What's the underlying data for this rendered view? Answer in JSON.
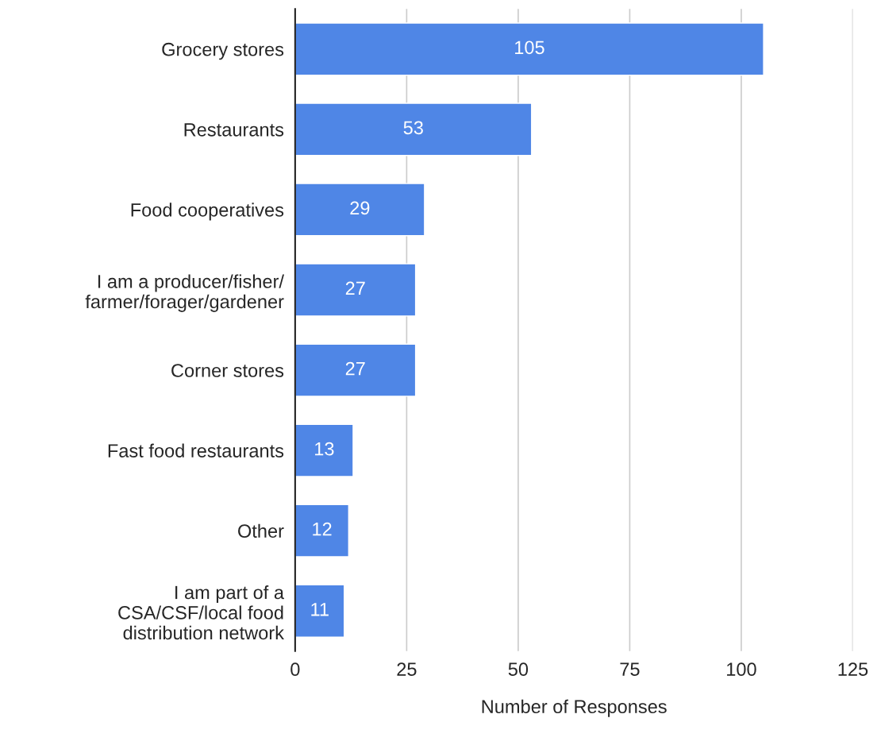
{
  "chart_data": {
    "type": "bar",
    "orientation": "horizontal",
    "xlabel": "Number of Responses",
    "categories": [
      "Grocery stores",
      "Restaurants",
      "Food cooperatives",
      "I am a producer/fisher/\nfarmer/forager/gardener",
      "Corner stores",
      "Fast food restaurants",
      "Other",
      "I am part of a\nCSA/CSF/local food\ndistribution network"
    ],
    "values": [
      105,
      53,
      29,
      27,
      27,
      13,
      12,
      11
    ],
    "color": "#4f86e6",
    "data_labels": true,
    "xlim": [
      0,
      125
    ],
    "xticks": [
      0,
      25,
      50,
      75,
      100,
      125
    ],
    "grid": "x"
  }
}
